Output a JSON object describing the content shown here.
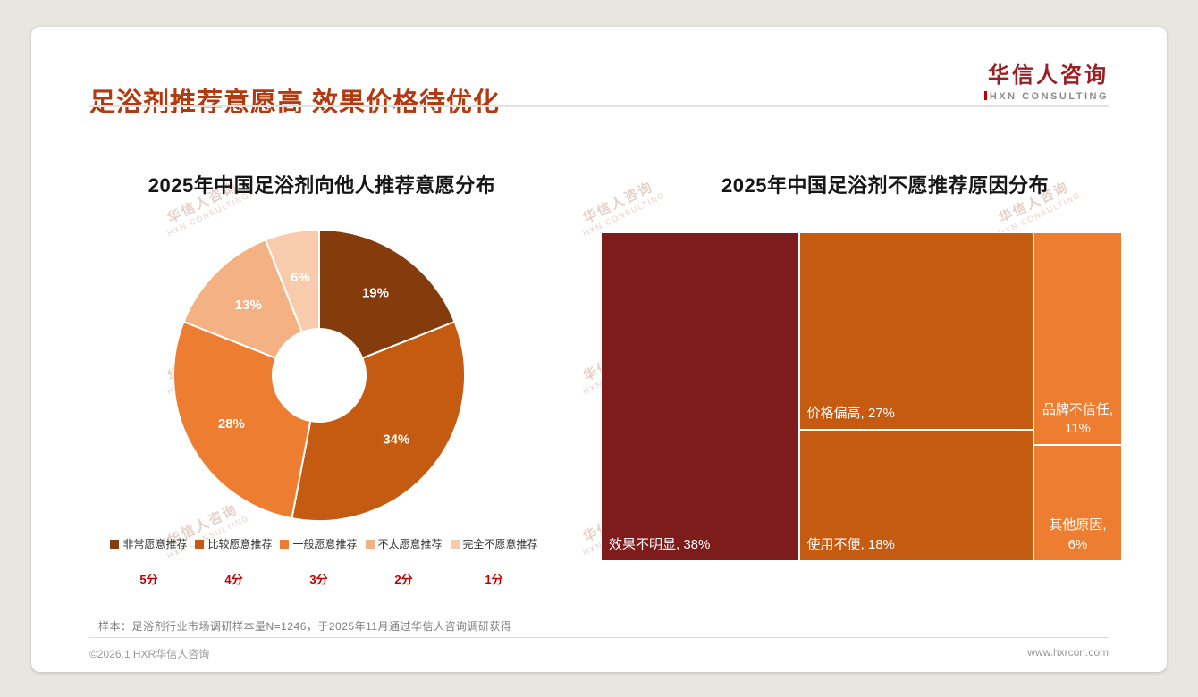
{
  "page": {
    "background": "#E9E6E2",
    "card_background": "#FFFFFF",
    "accent_color": "#B23A10"
  },
  "header": {
    "title": "足浴剂推荐意愿高 效果价格待优化",
    "logo": {
      "name": "华信人咨询",
      "subtitle": "HXN CONSULTING"
    }
  },
  "watermark": {
    "line1": "华信人咨询",
    "line2": "HXN CONSULTING"
  },
  "chart_data": [
    {
      "type": "pie",
      "donut": true,
      "title": "2025年中国足浴剂向他人推荐意愿分布",
      "categories": [
        "非常愿意推荐",
        "比较愿意推荐",
        "一般愿意推荐",
        "不太愿意推荐",
        "完全不愿意推荐"
      ],
      "values": [
        19,
        34,
        28,
        13,
        6
      ],
      "labels": [
        "19%",
        "34%",
        "28%",
        "13%",
        "6%"
      ],
      "colors": [
        "#843C0C",
        "#C55A11",
        "#ED7D31",
        "#F4B183",
        "#F8CBAD"
      ],
      "scores": [
        "5分",
        "4分",
        "3分",
        "2分",
        "1分"
      ],
      "legend_position": "bottom",
      "label_color": "#FFFFFF"
    },
    {
      "type": "treemap",
      "title": "2025年中国足浴剂不愿推荐原因分布",
      "items": [
        {
          "name": "效果不明显",
          "value": 38,
          "color": "#7E1C1C",
          "labelAlign": "left"
        },
        {
          "name": "价格偏高",
          "value": 27,
          "color": "#C55A11",
          "labelAlign": "left"
        },
        {
          "name": "使用不便",
          "value": 18,
          "color": "#C55A11",
          "labelAlign": "left"
        },
        {
          "name": "品牌不信任",
          "value": 11,
          "color": "#ED7D31",
          "labelAlign": "center"
        },
        {
          "name": "其他原因",
          "value": 6,
          "color": "#ED7D31",
          "labelAlign": "center"
        }
      ],
      "columns": [
        [
          0
        ],
        [
          1,
          2
        ],
        [
          3,
          4
        ]
      ],
      "label_color": "#FFFFFF"
    }
  ],
  "footer": {
    "note": "样本：足浴剂行业市场调研样本量N=1246，于2025年11月通过华信人咨询调研获得",
    "copyright": "©2026.1 HXR华信人咨询",
    "website": "www.hxrcon.com"
  }
}
